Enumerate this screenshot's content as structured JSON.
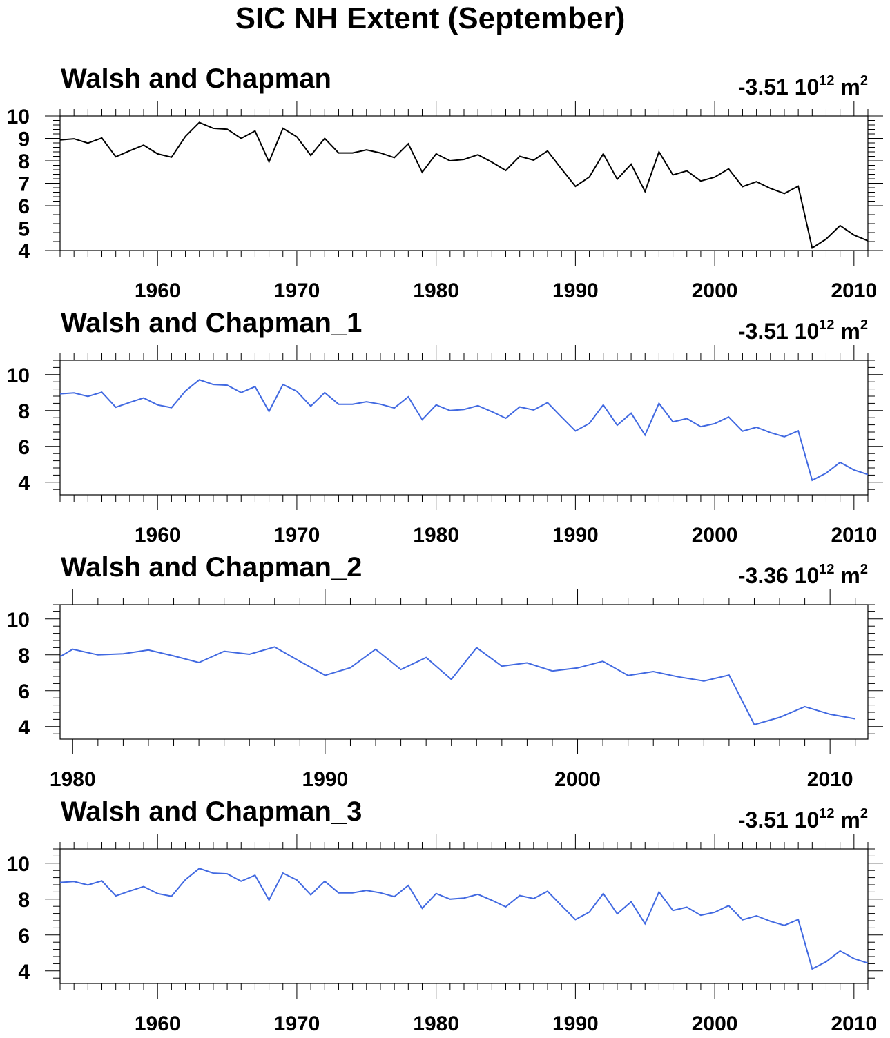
{
  "title": "SIC NH Extent (September)",
  "chart_data": [
    {
      "type": "line",
      "title": "Walsh and Chapman",
      "annotation": {
        "value": "-3.51 10",
        "exponent": "12",
        "unit": " m",
        "unit_exponent": "2"
      },
      "color": "#000000",
      "xlim": [
        1953,
        2011
      ],
      "ylim": [
        4,
        10
      ],
      "x_ticks": [
        "1960",
        "1970",
        "1980",
        "1990",
        "2000",
        "2010"
      ],
      "y_ticks": [
        "4",
        "5",
        "6",
        "7",
        "8",
        "9",
        "10"
      ],
      "x": [
        1953,
        1954,
        1955,
        1956,
        1957,
        1958,
        1959,
        1960,
        1961,
        1962,
        1963,
        1964,
        1965,
        1966,
        1967,
        1968,
        1969,
        1970,
        1971,
        1972,
        1973,
        1974,
        1975,
        1976,
        1977,
        1978,
        1979,
        1980,
        1981,
        1982,
        1983,
        1984,
        1985,
        1986,
        1987,
        1988,
        1989,
        1990,
        1991,
        1992,
        1993,
        1994,
        1995,
        1996,
        1997,
        1998,
        1999,
        2000,
        2001,
        2002,
        2003,
        2004,
        2005,
        2006,
        2007,
        2008,
        2009,
        2010,
        2011
      ],
      "values": [
        8.93,
        8.98,
        8.79,
        9.02,
        8.18,
        8.45,
        8.7,
        8.31,
        8.16,
        9.09,
        9.71,
        9.45,
        9.41,
        9.0,
        9.33,
        7.95,
        9.45,
        9.07,
        8.24,
        9.0,
        8.35,
        8.35,
        8.49,
        8.35,
        8.14,
        8.76,
        7.49,
        8.31,
        8.0,
        8.06,
        8.27,
        7.94,
        7.57,
        8.2,
        8.03,
        8.44,
        7.64,
        6.86,
        7.28,
        8.31,
        7.18,
        7.85,
        6.63,
        8.4,
        7.37,
        7.55,
        7.1,
        7.27,
        7.64,
        6.85,
        7.07,
        6.77,
        6.54,
        6.87,
        4.11,
        4.51,
        5.11,
        4.69,
        4.43
      ]
    },
    {
      "type": "line",
      "title": "Walsh and Chapman_1",
      "annotation": {
        "value": "-3.51 10",
        "exponent": "12",
        "unit": " m",
        "unit_exponent": "2"
      },
      "color": "#4169e1",
      "xlim": [
        1953,
        2011
      ],
      "ylim": [
        3.3,
        10.8
      ],
      "x_ticks": [
        "1960",
        "1970",
        "1980",
        "1990",
        "2000",
        "2010"
      ],
      "y_ticks": [
        "4",
        "6",
        "8",
        "10"
      ],
      "x": [
        1953,
        1954,
        1955,
        1956,
        1957,
        1958,
        1959,
        1960,
        1961,
        1962,
        1963,
        1964,
        1965,
        1966,
        1967,
        1968,
        1969,
        1970,
        1971,
        1972,
        1973,
        1974,
        1975,
        1976,
        1977,
        1978,
        1979,
        1980,
        1981,
        1982,
        1983,
        1984,
        1985,
        1986,
        1987,
        1988,
        1989,
        1990,
        1991,
        1992,
        1993,
        1994,
        1995,
        1996,
        1997,
        1998,
        1999,
        2000,
        2001,
        2002,
        2003,
        2004,
        2005,
        2006,
        2007,
        2008,
        2009,
        2010,
        2011
      ],
      "values": [
        8.93,
        8.98,
        8.79,
        9.02,
        8.18,
        8.45,
        8.7,
        8.31,
        8.16,
        9.09,
        9.71,
        9.45,
        9.41,
        9.0,
        9.33,
        7.95,
        9.45,
        9.07,
        8.24,
        9.0,
        8.35,
        8.35,
        8.49,
        8.35,
        8.14,
        8.76,
        7.49,
        8.31,
        8.0,
        8.06,
        8.27,
        7.94,
        7.57,
        8.2,
        8.03,
        8.44,
        7.64,
        6.86,
        7.28,
        8.31,
        7.18,
        7.85,
        6.63,
        8.4,
        7.37,
        7.55,
        7.1,
        7.27,
        7.64,
        6.85,
        7.07,
        6.77,
        6.54,
        6.87,
        4.11,
        4.51,
        5.11,
        4.69,
        4.43
      ]
    },
    {
      "type": "line",
      "title": "Walsh and Chapman_2",
      "annotation": {
        "value": "-3.36 10",
        "exponent": "12",
        "unit": " m",
        "unit_exponent": "2"
      },
      "color": "#4169e1",
      "xlim": [
        1979.5,
        2011.5
      ],
      "ylim": [
        3.3,
        10.8
      ],
      "x_ticks": [
        "1980",
        "1990",
        "2000",
        "2010"
      ],
      "y_ticks": [
        "4",
        "6",
        "8",
        "10"
      ],
      "x": [
        1979,
        1980,
        1981,
        1982,
        1983,
        1984,
        1985,
        1986,
        1987,
        1988,
        1989,
        1990,
        1991,
        1992,
        1993,
        1994,
        1995,
        1996,
        1997,
        1998,
        1999,
        2000,
        2001,
        2002,
        2003,
        2004,
        2005,
        2006,
        2007,
        2008,
        2009,
        2010,
        2011
      ],
      "values": [
        7.49,
        8.31,
        8.0,
        8.06,
        8.27,
        7.94,
        7.57,
        8.2,
        8.03,
        8.44,
        7.64,
        6.86,
        7.28,
        8.31,
        7.18,
        7.85,
        6.63,
        8.4,
        7.37,
        7.55,
        7.1,
        7.27,
        7.64,
        6.85,
        7.07,
        6.77,
        6.54,
        6.87,
        4.11,
        4.51,
        5.11,
        4.69,
        4.43
      ]
    },
    {
      "type": "line",
      "title": "Walsh and Chapman_3",
      "annotation": {
        "value": "-3.51 10",
        "exponent": "12",
        "unit": " m",
        "unit_exponent": "2"
      },
      "color": "#4169e1",
      "xlim": [
        1953,
        2011
      ],
      "ylim": [
        3.3,
        10.8
      ],
      "x_ticks": [
        "1960",
        "1970",
        "1980",
        "1990",
        "2000",
        "2010"
      ],
      "y_ticks": [
        "4",
        "6",
        "8",
        "10"
      ],
      "x": [
        1953,
        1954,
        1955,
        1956,
        1957,
        1958,
        1959,
        1960,
        1961,
        1962,
        1963,
        1964,
        1965,
        1966,
        1967,
        1968,
        1969,
        1970,
        1971,
        1972,
        1973,
        1974,
        1975,
        1976,
        1977,
        1978,
        1979,
        1980,
        1981,
        1982,
        1983,
        1984,
        1985,
        1986,
        1987,
        1988,
        1989,
        1990,
        1991,
        1992,
        1993,
        1994,
        1995,
        1996,
        1997,
        1998,
        1999,
        2000,
        2001,
        2002,
        2003,
        2004,
        2005,
        2006,
        2007,
        2008,
        2009,
        2010,
        2011
      ],
      "values": [
        8.93,
        8.98,
        8.79,
        9.02,
        8.18,
        8.45,
        8.7,
        8.31,
        8.16,
        9.09,
        9.71,
        9.45,
        9.41,
        9.0,
        9.33,
        7.95,
        9.45,
        9.07,
        8.24,
        9.0,
        8.35,
        8.35,
        8.49,
        8.35,
        8.14,
        8.76,
        7.49,
        8.31,
        8.0,
        8.06,
        8.27,
        7.94,
        7.57,
        8.2,
        8.03,
        8.44,
        7.64,
        6.86,
        7.28,
        8.31,
        7.18,
        7.85,
        6.63,
        8.4,
        7.37,
        7.55,
        7.1,
        7.27,
        7.64,
        6.85,
        7.07,
        6.77,
        6.54,
        6.87,
        4.11,
        4.51,
        5.11,
        4.69,
        4.43
      ]
    }
  ]
}
